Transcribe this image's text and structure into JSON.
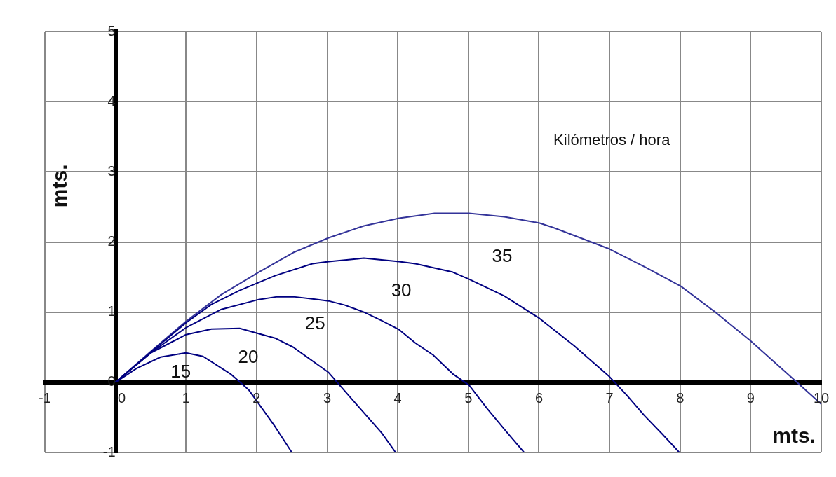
{
  "chart_data": {
    "type": "line",
    "xlabel": "mts.",
    "ylabel": "mts.",
    "xlim": [
      -1,
      10
    ],
    "ylim": [
      -1,
      5
    ],
    "xticks": [
      -1,
      0,
      1,
      2,
      3,
      4,
      5,
      6,
      7,
      8,
      9,
      10
    ],
    "yticks": [
      -1,
      0,
      1,
      2,
      3,
      4,
      5
    ],
    "grid": true,
    "legend": false,
    "marker": "none",
    "line_style": "solid",
    "series": [
      {
        "color": "#000080",
        "x": [
          0,
          0.3,
          0.64,
          1.0,
          1.24,
          1.63,
          1.89,
          2.26,
          2.5
        ],
        "values": [
          0,
          0.2,
          0.36,
          0.42,
          0.37,
          0.12,
          -0.11,
          -0.63,
          -1
        ]
      },
      {
        "color": "#000080",
        "x": [
          0,
          0.5,
          0.77,
          1.0,
          1.36,
          1.76,
          2.26,
          2.52,
          3.02,
          3.35,
          3.77,
          3.97
        ],
        "values": [
          0,
          0.42,
          0.56,
          0.68,
          0.76,
          0.77,
          0.63,
          0.5,
          0.14,
          -0.24,
          -0.72,
          -1
        ]
      },
      {
        "color": "#000080",
        "x": [
          0,
          0.5,
          1.0,
          1.5,
          2.03,
          2.29,
          2.52,
          2.79,
          3.02,
          3.25,
          3.52,
          3.77,
          4.02,
          4.25,
          4.5,
          4.78,
          5.01,
          5.27,
          5.56,
          5.79
        ],
        "values": [
          0,
          0.42,
          0.78,
          1.04,
          1.18,
          1.22,
          1.22,
          1.19,
          1.16,
          1.1,
          1.0,
          0.88,
          0.75,
          0.56,
          0.39,
          0.12,
          -0.04,
          -0.38,
          -0.73,
          -1
        ]
      },
      {
        "color": "#000080",
        "x": [
          0,
          0.5,
          1.0,
          1.36,
          1.76,
          2.26,
          2.79,
          3.02,
          3.52,
          4.02,
          4.25,
          4.78,
          5.01,
          5.51,
          6.01,
          6.5,
          7.0,
          7.25,
          7.49,
          7.75,
          7.99
        ],
        "values": [
          0,
          0.43,
          0.85,
          1.11,
          1.31,
          1.52,
          1.69,
          1.72,
          1.77,
          1.72,
          1.69,
          1.57,
          1.47,
          1.23,
          0.91,
          0.52,
          0.08,
          -0.19,
          -0.47,
          -0.74,
          -1
        ]
      },
      {
        "color": "#333399",
        "x": [
          0,
          0.5,
          1.0,
          1.5,
          2.03,
          2.52,
          3.02,
          3.52,
          4.02,
          4.52,
          5.01,
          5.51,
          6.01,
          6.22,
          7.0,
          7.51,
          8.01,
          8.5,
          9.0,
          9.5,
          10
        ],
        "values": [
          0,
          0.44,
          0.87,
          1.25,
          1.57,
          1.85,
          2.06,
          2.23,
          2.34,
          2.41,
          2.41,
          2.36,
          2.27,
          2.2,
          1.9,
          1.64,
          1.37,
          1.0,
          0.59,
          0.14,
          -0.31
        ]
      }
    ],
    "annotations": [
      "15",
      "20",
      "25",
      "30",
      "35",
      "Kilómetros / hora"
    ]
  }
}
